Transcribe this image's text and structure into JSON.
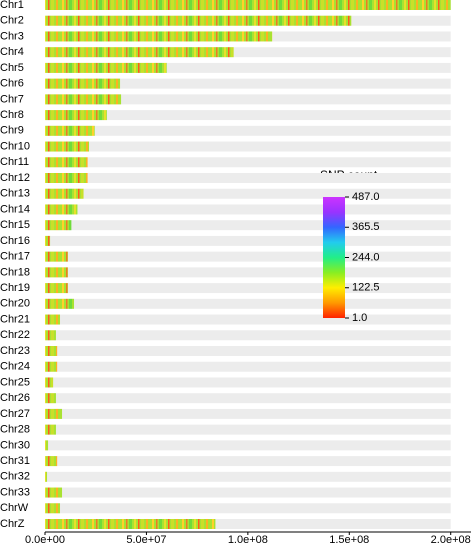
{
  "chart_data": {
    "type": "snp-density",
    "categories": [
      "Chr1",
      "Chr2",
      "Chr3",
      "Chr4",
      "Chr5",
      "Chr6",
      "Chr7",
      "Chr8",
      "Chr9",
      "Chr10",
      "Chr11",
      "Chr12",
      "Chr13",
      "Chr14",
      "Chr15",
      "Chr16",
      "Chr17",
      "Chr18",
      "Chr19",
      "Chr20",
      "Chr21",
      "Chr22",
      "Chr23",
      "Chr24",
      "Chr25",
      "Chr26",
      "Chr27",
      "Chr28",
      "Chr30",
      "Chr31",
      "Chr32",
      "Chr33",
      "ChrW",
      "ChrZ"
    ],
    "values": [
      200000000,
      151000000,
      112000000,
      93000000,
      60000000,
      37000000,
      37500000,
      30500000,
      24500000,
      21700000,
      21000000,
      21000000,
      19000000,
      16000000,
      13000000,
      2500000,
      11300000,
      11300000,
      11300000,
      14300000,
      7400000,
      5400000,
      6000000,
      6000000,
      4000000,
      5400000,
      8400000,
      5400000,
      1500000,
      6000000,
      1000000,
      8400000,
      7400000,
      84000000
    ],
    "xlim": [
      0,
      210000000
    ],
    "xticks": [
      {
        "value": 0,
        "label": "0.0e+00"
      },
      {
        "value": 50000000,
        "label": "5.0e+07"
      },
      {
        "value": 100000000,
        "label": "1.0e+08"
      },
      {
        "value": 150000000,
        "label": "1.5e+08"
      },
      {
        "value": 200000000,
        "label": "2.0e+08"
      }
    ],
    "legend_title": "SNP count",
    "colorbar_lim": [
      1,
      487
    ],
    "colorbar_ticks": [
      {
        "value": 487,
        "label": "487.0"
      },
      {
        "value": 365.5,
        "label": "365.5"
      },
      {
        "value": 244,
        "label": "244.0"
      },
      {
        "value": 122.5,
        "label": "122.5"
      },
      {
        "value": 1,
        "label": "1.0"
      }
    ],
    "colorscale": [
      "#ff2200",
      "#ff9900",
      "#ffee00",
      "#88ee22",
      "#22ee88",
      "#22ccee",
      "#3366ff",
      "#9933ff",
      "#cc33ff"
    ]
  }
}
